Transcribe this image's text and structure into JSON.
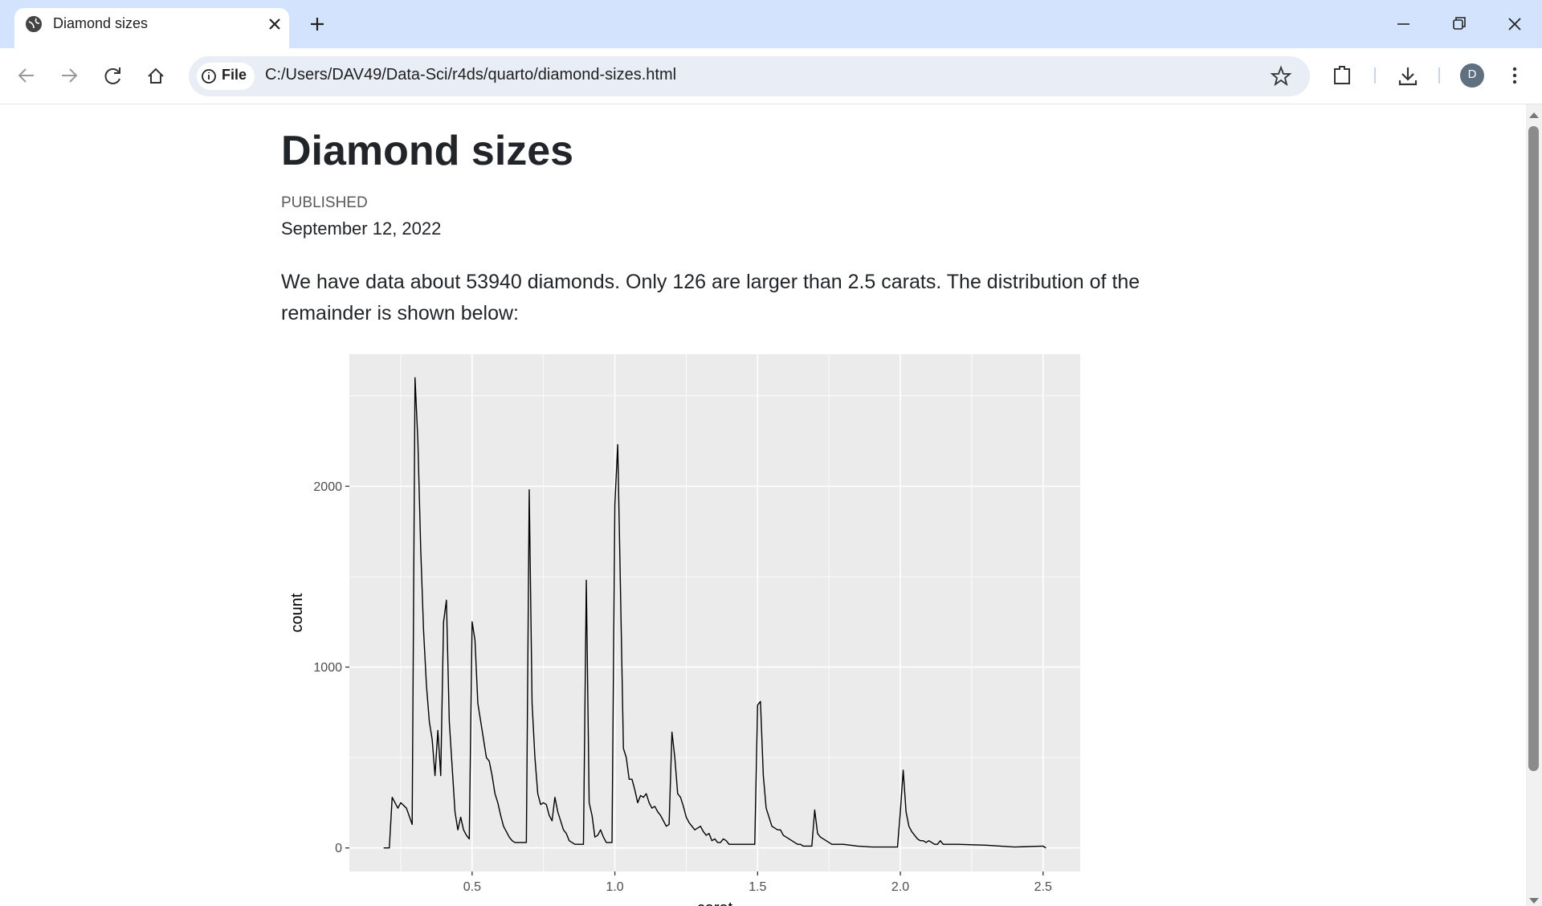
{
  "browser": {
    "tab_title": "Diamond sizes",
    "url_chip": "File",
    "url": "C:/Users/DAV49/Data-Sci/r4ds/quarto/diamond-sizes.html",
    "profile": "D"
  },
  "document": {
    "title": "Diamond sizes",
    "published_label": "PUBLISHED",
    "date": "September 12, 2022",
    "paragraph": "We have data about 53940 diamonds. Only 126 are larger than 2.5 carats. The distribution of the remainder is shown below:"
  },
  "chart_data": {
    "type": "line",
    "xlabel": "carat",
    "ylabel": "count",
    "color": "#000000",
    "grid": true,
    "xlim": [
      0.07,
      2.63
    ],
    "ylim": [
      -130,
      2730
    ],
    "xticks": [
      0.5,
      {
        "value": 1,
        "label": "1.0"
      },
      1.5,
      {
        "value": 2,
        "label": "2.0"
      },
      2.5
    ],
    "yticks": [
      0,
      1000,
      2000
    ],
    "minor_xticks": [
      0.25,
      0.75,
      1.25,
      1.75,
      2.25
    ],
    "minor_yticks": [
      500,
      1500,
      2500
    ],
    "x": [
      0.19,
      0.21,
      0.22,
      0.24,
      0.25,
      0.27,
      0.29,
      0.3,
      0.31,
      0.32,
      0.33,
      0.34,
      0.35,
      0.36,
      0.37,
      0.38,
      0.39,
      0.4,
      0.41,
      0.42,
      0.43,
      0.44,
      0.45,
      0.46,
      0.47,
      0.48,
      0.49,
      0.5,
      0.51,
      0.52,
      0.53,
      0.54,
      0.55,
      0.56,
      0.57,
      0.58,
      0.59,
      0.6,
      0.61,
      0.62,
      0.63,
      0.64,
      0.65,
      0.66,
      0.69,
      0.7,
      0.71,
      0.72,
      0.73,
      0.74,
      0.75,
      0.76,
      0.77,
      0.78,
      0.79,
      0.8,
      0.81,
      0.82,
      0.83,
      0.84,
      0.85,
      0.86,
      0.87,
      0.89,
      0.9,
      0.91,
      0.92,
      0.93,
      0.94,
      0.95,
      0.96,
      0.97,
      0.98,
      0.99,
      1,
      1.01,
      1.02,
      1.03,
      1.04,
      1.05,
      1.06,
      1.07,
      1.08,
      1.09,
      1.1,
      1.11,
      1.12,
      1.13,
      1.14,
      1.15,
      1.16,
      1.17,
      1.18,
      1.19,
      1.2,
      1.21,
      1.22,
      1.23,
      1.24,
      1.25,
      1.26,
      1.27,
      1.28,
      1.29,
      1.3,
      1.31,
      1.32,
      1.33,
      1.34,
      1.35,
      1.36,
      1.37,
      1.38,
      1.39,
      1.4,
      1.41,
      1.49,
      1.5,
      1.51,
      1.52,
      1.53,
      1.54,
      1.55,
      1.56,
      1.57,
      1.58,
      1.59,
      1.6,
      1.61,
      1.62,
      1.63,
      1.64,
      1.65,
      1.66,
      1.69,
      1.7,
      1.71,
      1.72,
      1.73,
      1.74,
      1.75,
      1.76,
      1.8,
      1.85,
      1.9,
      1.99,
      2,
      2.01,
      2.02,
      2.03,
      2.04,
      2.05,
      2.06,
      2.07,
      2.08,
      2.09,
      2.1,
      2.11,
      2.12,
      2.13,
      2.14,
      2.15,
      2.2,
      2.3,
      2.4,
      2.5,
      2.51
    ],
    "values": [
      0,
      0,
      280,
      220,
      250,
      220,
      130,
      2600,
      2250,
      1650,
      1200,
      900,
      700,
      600,
      400,
      650,
      400,
      1250,
      1370,
      700,
      450,
      200,
      100,
      170,
      100,
      70,
      50,
      1250,
      1150,
      800,
      700,
      600,
      500,
      480,
      400,
      300,
      250,
      180,
      120,
      90,
      60,
      40,
      30,
      30,
      30,
      1980,
      800,
      500,
      300,
      240,
      250,
      240,
      180,
      150,
      280,
      200,
      150,
      100,
      80,
      40,
      30,
      20,
      20,
      20,
      1480,
      250,
      180,
      60,
      70,
      100,
      60,
      30,
      30,
      30,
      1900,
      2230,
      1400,
      550,
      500,
      380,
      380,
      320,
      250,
      290,
      280,
      300,
      250,
      220,
      230,
      200,
      180,
      150,
      120,
      130,
      640,
      500,
      300,
      280,
      230,
      170,
      140,
      120,
      100,
      110,
      120,
      90,
      70,
      80,
      40,
      50,
      30,
      30,
      50,
      40,
      20,
      20,
      20,
      790,
      810,
      400,
      220,
      170,
      120,
      110,
      100,
      100,
      70,
      60,
      50,
      40,
      30,
      20,
      20,
      10,
      10,
      210,
      80,
      60,
      50,
      40,
      30,
      20,
      20,
      10,
      5,
      5,
      200,
      430,
      200,
      120,
      90,
      70,
      50,
      40,
      40,
      30,
      40,
      30,
      20,
      20,
      40,
      20,
      20,
      15,
      5,
      10,
      0
    ]
  }
}
